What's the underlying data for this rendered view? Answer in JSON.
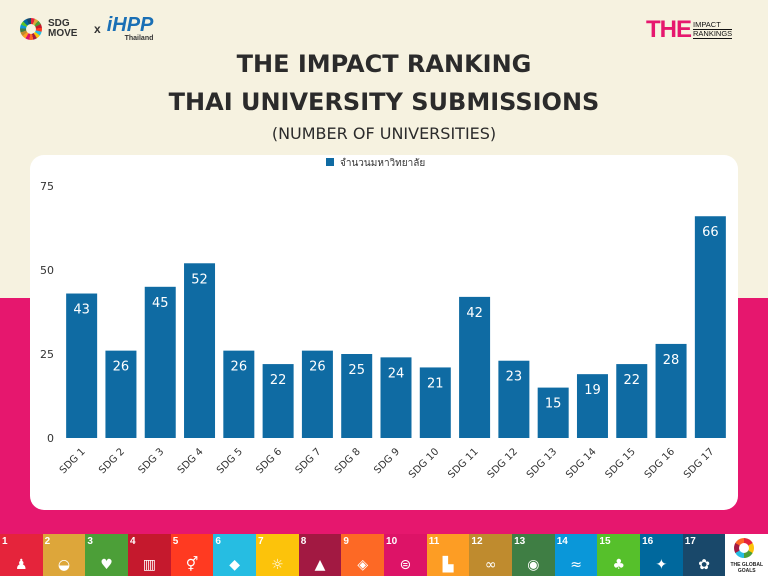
{
  "header": {
    "left_logo_a": "SDG MOVE",
    "times": "x",
    "left_logo_b": "iHPP",
    "left_logo_b_sub": "Thailand",
    "right_logo_mark": "THE",
    "right_logo_line1": "IMPACT",
    "right_logo_line2": "RANKINGS"
  },
  "chart_data": {
    "type": "bar",
    "title": "THE IMPACT RANKING",
    "title_line2": "THAI UNIVERSITY SUBMISSIONS",
    "subtitle": "(NUMBER OF UNIVERSITIES)",
    "legend": "จำนวนมหาวิทยาลัย",
    "legend_position": "top-center",
    "categories": [
      "SDG 1",
      "SDG 2",
      "SDG 3",
      "SDG 4",
      "SDG 5",
      "SDG 6",
      "SDG 7",
      "SDG 8",
      "SDG 9",
      "SDG 10",
      "SDG 11",
      "SDG 12",
      "SDG 13",
      "SDG 14",
      "SDG 15",
      "SDG 16",
      "SDG 17"
    ],
    "values": [
      43,
      26,
      45,
      52,
      26,
      22,
      26,
      25,
      24,
      21,
      42,
      23,
      15,
      19,
      22,
      28,
      66
    ],
    "yticks": [
      0,
      25,
      50,
      75
    ],
    "ylim": [
      0,
      75
    ],
    "grid": false,
    "colors": {
      "bar": "#0f6ba3",
      "label": "#ffffff",
      "axis": "#333333"
    }
  },
  "footer": {
    "goals": [
      {
        "num": "1",
        "color": "#e5243b",
        "icon": "poverty-icon",
        "glyph": "♟"
      },
      {
        "num": "2",
        "color": "#dda63a",
        "icon": "food-bowl-icon",
        "glyph": "◒"
      },
      {
        "num": "3",
        "color": "#4c9f38",
        "icon": "heartbeat-icon",
        "glyph": "♥"
      },
      {
        "num": "4",
        "color": "#c5192d",
        "icon": "book-icon",
        "glyph": "▥"
      },
      {
        "num": "5",
        "color": "#ff3a21",
        "icon": "gender-icon",
        "glyph": "⚥"
      },
      {
        "num": "6",
        "color": "#26bde2",
        "icon": "water-drop-icon",
        "glyph": "◆"
      },
      {
        "num": "7",
        "color": "#fcc30b",
        "icon": "sun-icon",
        "glyph": "☼"
      },
      {
        "num": "8",
        "color": "#a21942",
        "icon": "growth-chart-icon",
        "glyph": "▲"
      },
      {
        "num": "9",
        "color": "#fd6925",
        "icon": "cubes-icon",
        "glyph": "◈"
      },
      {
        "num": "10",
        "color": "#dd1367",
        "icon": "equality-icon",
        "glyph": "⊜"
      },
      {
        "num": "11",
        "color": "#fd9d24",
        "icon": "city-icon",
        "glyph": "▙"
      },
      {
        "num": "12",
        "color": "#bf8b2e",
        "icon": "infinity-icon",
        "glyph": "∞"
      },
      {
        "num": "13",
        "color": "#3f7e44",
        "icon": "eye-icon",
        "glyph": "◉"
      },
      {
        "num": "14",
        "color": "#0a97d9",
        "icon": "fish-icon",
        "glyph": "≈"
      },
      {
        "num": "15",
        "color": "#56c02b",
        "icon": "tree-icon",
        "glyph": "♣"
      },
      {
        "num": "16",
        "color": "#00689d",
        "icon": "dove-icon",
        "glyph": "✦"
      },
      {
        "num": "17",
        "color": "#19486a",
        "icon": "rings-icon",
        "glyph": "✿"
      }
    ],
    "last_caption": "THE GLOBAL GOALS"
  }
}
